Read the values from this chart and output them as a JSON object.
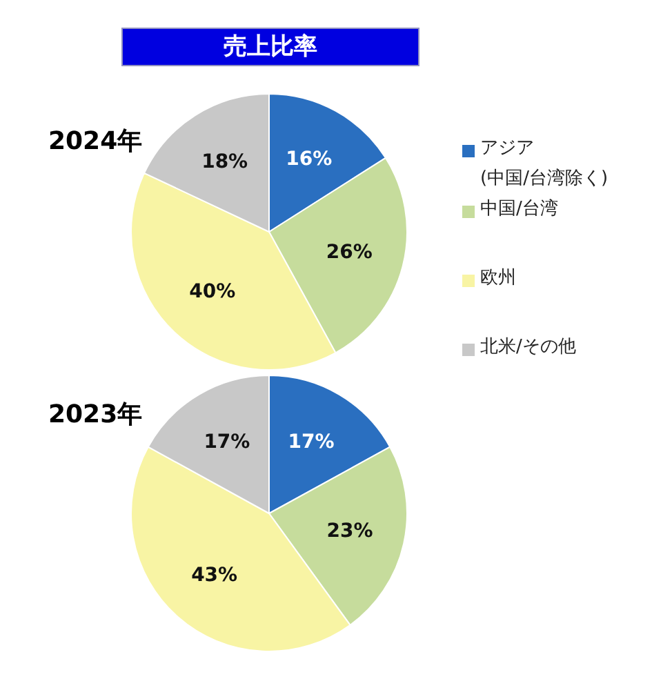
{
  "chart_data": [
    {
      "type": "pie",
      "title": "売上比率",
      "subtitle": "2024年",
      "categories": [
        "アジア (中国/台湾除く)",
        "中国/台湾",
        "欧州",
        "北米/その他"
      ],
      "values": [
        16,
        26,
        40,
        18
      ],
      "value_labels": [
        "16%",
        "26%",
        "40%",
        "18%"
      ],
      "colors": [
        "#2a6fc0",
        "#c6dc9c",
        "#f8f4a4",
        "#c8c8c8"
      ],
      "legend": "right"
    },
    {
      "type": "pie",
      "title": "2023年",
      "categories": [
        null,
        null,
        null,
        null
      ],
      "values": [
        17,
        23,
        43,
        17
      ],
      "value_labels": [
        "17%",
        "23%",
        "43%",
        "17%"
      ],
      "colors": [
        "#2a6fc0",
        "#c6dc9c",
        "#f8f4a4",
        "#c8c8c8"
      ]
    }
  ]
}
